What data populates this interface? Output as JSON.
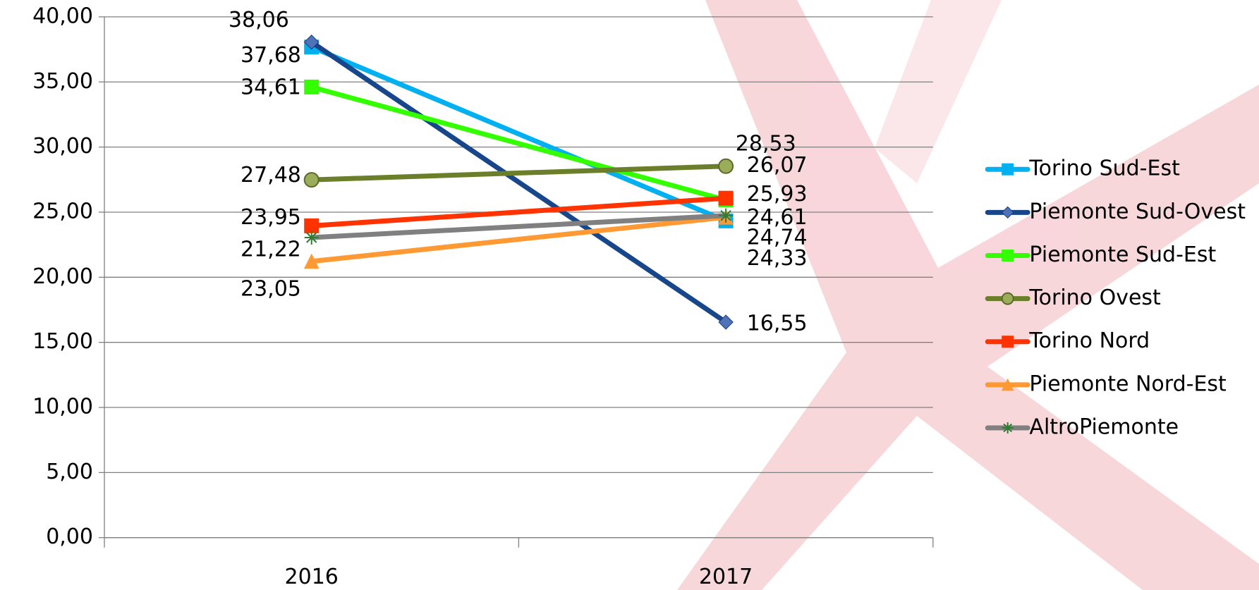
{
  "chart_data": {
    "type": "line",
    "categories": [
      "2016",
      "2017"
    ],
    "ylim": [
      0,
      40
    ],
    "yticks": [
      {
        "value": 0,
        "label": "0,00"
      },
      {
        "value": 5,
        "label": "5,00"
      },
      {
        "value": 10,
        "label": "10,00"
      },
      {
        "value": 15,
        "label": "15,00"
      },
      {
        "value": 20,
        "label": "20,00"
      },
      {
        "value": 25,
        "label": "25,00"
      },
      {
        "value": 30,
        "label": "30,00"
      },
      {
        "value": 35,
        "label": "35,00"
      },
      {
        "value": 40,
        "label": "40,00"
      }
    ],
    "grid": true,
    "legend": "right",
    "series": [
      {
        "name": "Torino Sud-Est",
        "color": "#00b0f0",
        "marker": "square",
        "values": [
          37.68,
          24.33
        ],
        "value_labels": [
          "37,68",
          "24,33"
        ]
      },
      {
        "name": "Piemonte Sud-Ovest",
        "color": "#17478a",
        "marker": "diamond",
        "values": [
          38.06,
          16.55
        ],
        "value_labels": [
          "38,06",
          "16,55"
        ]
      },
      {
        "name": "Piemonte Sud-Est",
        "color": "#33ff00",
        "marker": "square",
        "values": [
          34.61,
          25.93
        ],
        "value_labels": [
          "34,61",
          "25,93"
        ]
      },
      {
        "name": "Torino Ovest",
        "color": "#6b7f2a",
        "marker": "circle",
        "values": [
          27.48,
          28.53
        ],
        "value_labels": [
          "27,48",
          "28,53"
        ]
      },
      {
        "name": "Torino Nord",
        "color": "#ff3300",
        "marker": "square",
        "values": [
          23.95,
          26.07
        ],
        "value_labels": [
          "23,95",
          "26,07"
        ]
      },
      {
        "name": "Piemonte Nord-Est",
        "color": "#ff9933",
        "marker": "triangle",
        "values": [
          21.22,
          24.61
        ],
        "value_labels": [
          "21,22",
          "24,61"
        ]
      },
      {
        "name": "AltroPiemonte",
        "color": "#808080",
        "marker": "star",
        "values": [
          23.05,
          24.74
        ],
        "value_labels": [
          "23,05",
          "24,74"
        ]
      }
    ]
  }
}
